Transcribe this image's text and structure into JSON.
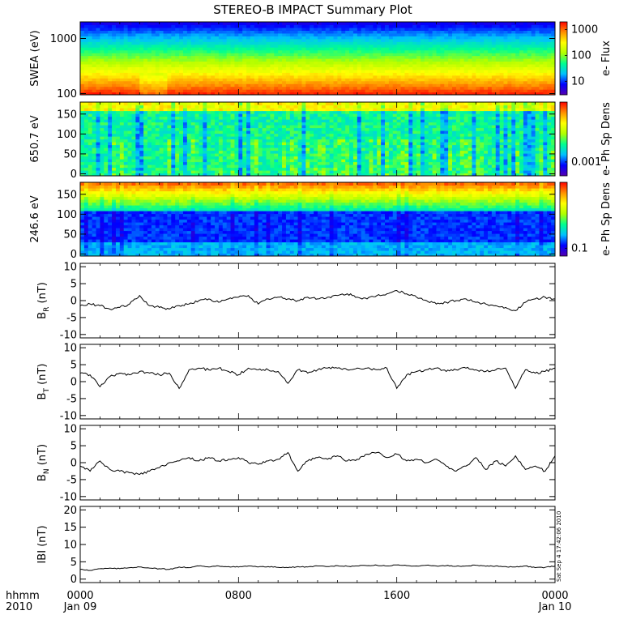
{
  "title": "STEREO-B IMPACT Summary Plot",
  "time_axis": {
    "row_label": "hhmm",
    "year_label": "2010",
    "ticks": [
      {
        "label": "0000",
        "sub": "Jan 09",
        "hour": 0
      },
      {
        "label": "0800",
        "sub": "",
        "hour": 8
      },
      {
        "label": "1600",
        "sub": "",
        "hour": 16
      },
      {
        "label": "0000",
        "sub": "Jan 10",
        "hour": 24
      }
    ],
    "range_hours": [
      0,
      24
    ]
  },
  "timestamp": "Sat Sep  4 17:42:06 2010",
  "colors": {
    "spectrogram_scale": [
      "#5500b0",
      "#0000ff",
      "#00c0ff",
      "#00ff90",
      "#b0ff00",
      "#ffff00",
      "#ff9000",
      "#ff0000"
    ],
    "line": "#000000",
    "axes": "#000000"
  },
  "chart_data": [
    {
      "type": "heatmap",
      "ylabel": "SWEA (eV)",
      "yscale": "log",
      "ylim": [
        95,
        2000
      ],
      "yticks": [
        {
          "value": 100,
          "label": "100"
        },
        {
          "value": 1000,
          "label": "1000"
        }
      ],
      "colorbar": {
        "label": "e- Flux",
        "scale": "log",
        "range": [
          3,
          2000
        ],
        "ticks": [
          {
            "value": 10,
            "label": "10"
          },
          {
            "value": 100,
            "label": "100"
          },
          {
            "value": 1000,
            "label": "1000"
          }
        ]
      }
    },
    {
      "type": "heatmap",
      "ylabel": "650.7 eV",
      "yscale": "linear",
      "ylim": [
        -5,
        180
      ],
      "yticks": [
        {
          "value": 0,
          "label": "0"
        },
        {
          "value": 50,
          "label": "50"
        },
        {
          "value": 100,
          "label": "100"
        },
        {
          "value": 150,
          "label": "150"
        }
      ],
      "colorbar": {
        "label": "e- Ph Sp Dens",
        "scale": "log",
        "range": [
          0.0005,
          0.02
        ],
        "ticks": [
          {
            "value": 0.001,
            "label": "0.001"
          }
        ]
      }
    },
    {
      "type": "heatmap",
      "ylabel": "246.6 eV",
      "yscale": "linear",
      "ylim": [
        -5,
        180
      ],
      "yticks": [
        {
          "value": 0,
          "label": "0"
        },
        {
          "value": 50,
          "label": "50"
        },
        {
          "value": 100,
          "label": "100"
        },
        {
          "value": 150,
          "label": "150"
        }
      ],
      "colorbar": {
        "label": "e- Ph Sp Dens",
        "scale": "log",
        "range": [
          0.07,
          2
        ],
        "ticks": [
          {
            "value": 0.1,
            "label": "0.1"
          }
        ]
      }
    },
    {
      "type": "line",
      "ylabel": "B_R (nT)",
      "ylabel_main": "B",
      "ylabel_sub": "R",
      "ylabel_unit": "(nT)",
      "ylim": [
        -11,
        11
      ],
      "yticks": [
        {
          "value": -10,
          "label": "-10"
        },
        {
          "value": -5,
          "label": "-5"
        },
        {
          "value": 0,
          "label": "0"
        },
        {
          "value": 5,
          "label": "5"
        },
        {
          "value": 10,
          "label": "10"
        }
      ],
      "x": [
        0,
        0.5,
        1,
        1.5,
        2,
        2.5,
        3,
        3.5,
        4,
        4.5,
        5,
        5.5,
        6,
        6.5,
        7,
        7.5,
        8,
        8.5,
        9,
        9.5,
        10,
        10.5,
        11,
        11.5,
        12,
        12.5,
        13,
        13.5,
        14,
        14.5,
        15,
        15.5,
        16,
        16.5,
        17,
        17.5,
        18,
        18.5,
        19,
        19.5,
        20,
        20.5,
        21,
        21.5,
        22,
        22.5,
        23,
        23.5,
        24
      ],
      "y": [
        -1.5,
        -1,
        -1.5,
        -2.5,
        -2,
        -1,
        1.5,
        -1.5,
        -2,
        -2.5,
        -1.5,
        -1,
        0,
        0.5,
        -0.5,
        0.5,
        1,
        1.5,
        -1,
        0.5,
        1,
        0.5,
        0,
        1,
        0.5,
        1,
        1.5,
        2,
        1,
        0.5,
        1.5,
        2,
        3,
        2,
        1,
        0,
        -1,
        -0.5,
        0,
        0.5,
        -0.5,
        -1,
        -1.5,
        -2,
        -3,
        -0.5,
        0.5,
        1,
        0.5
      ]
    },
    {
      "type": "line",
      "ylabel": "B_T (nT)",
      "ylabel_main": "B",
      "ylabel_sub": "T",
      "ylabel_unit": "(nT)",
      "ylim": [
        -11,
        11
      ],
      "yticks": [
        {
          "value": -10,
          "label": "-10"
        },
        {
          "value": -5,
          "label": "-5"
        },
        {
          "value": 0,
          "label": "0"
        },
        {
          "value": 5,
          "label": "5"
        },
        {
          "value": 10,
          "label": "10"
        }
      ],
      "x": [
        0,
        0.5,
        1,
        1.5,
        2,
        2.5,
        3,
        3.5,
        4,
        4.5,
        5,
        5.5,
        6,
        6.5,
        7,
        7.5,
        8,
        8.5,
        9,
        9.5,
        10,
        10.5,
        11,
        11.5,
        12,
        12.5,
        13,
        13.5,
        14,
        14.5,
        15,
        15.5,
        16,
        16.5,
        17,
        17.5,
        18,
        18.5,
        19,
        19.5,
        20,
        20.5,
        21,
        21.5,
        22,
        22.5,
        23,
        23.5,
        24
      ],
      "y": [
        2.5,
        2,
        -1.5,
        1.5,
        2.5,
        2,
        3,
        2.5,
        2,
        2.5,
        -2,
        3.5,
        4,
        3.5,
        4,
        3,
        2,
        4,
        3.5,
        3.5,
        3,
        -0.5,
        3.5,
        2.5,
        3.5,
        4,
        4,
        3.5,
        4,
        4,
        3.5,
        4,
        -2,
        2,
        3,
        3.5,
        4,
        3,
        3.5,
        4,
        3.5,
        3,
        3.5,
        4,
        -2,
        3.5,
        2.5,
        3,
        4
      ]
    },
    {
      "type": "line",
      "ylabel": "B_N (nT)",
      "ylabel_main": "B",
      "ylabel_sub": "N",
      "ylabel_unit": "(nT)",
      "ylim": [
        -11,
        11
      ],
      "yticks": [
        {
          "value": -10,
          "label": "-10"
        },
        {
          "value": -5,
          "label": "-5"
        },
        {
          "value": 0,
          "label": "0"
        },
        {
          "value": 5,
          "label": "5"
        },
        {
          "value": 10,
          "label": "10"
        }
      ],
      "x": [
        0,
        0.5,
        1,
        1.5,
        2,
        2.5,
        3,
        3.5,
        4,
        4.5,
        5,
        5.5,
        6,
        6.5,
        7,
        7.5,
        8,
        8.5,
        9,
        9.5,
        10,
        10.5,
        11,
        11.5,
        12,
        12.5,
        13,
        13.5,
        14,
        14.5,
        15,
        15.5,
        16,
        16.5,
        17,
        17.5,
        18,
        18.5,
        19,
        19.5,
        20,
        20.5,
        21,
        21.5,
        22,
        22.5,
        23,
        23.5,
        24
      ],
      "y": [
        -1,
        -2.5,
        0.5,
        -2,
        -2.5,
        -3,
        -3.5,
        -2.5,
        -1.5,
        0,
        0.5,
        1.5,
        0.5,
        1.5,
        0.5,
        1,
        1.5,
        0,
        -0.5,
        0.5,
        1,
        3,
        -2.5,
        0.5,
        1.5,
        1,
        2,
        0.5,
        1,
        2.5,
        3,
        1.5,
        2.5,
        0.5,
        1,
        0,
        1,
        -1,
        -2.5,
        -1,
        1.5,
        -2,
        0.5,
        -1,
        2,
        -2,
        -1,
        -2.5,
        2
      ]
    },
    {
      "type": "line",
      "ylabel": "|B| (nT)",
      "ylabel_main": "IBI",
      "ylabel_sub": "",
      "ylabel_unit": "(nT)",
      "ylim": [
        -1,
        21
      ],
      "yticks": [
        {
          "value": 0,
          "label": "0"
        },
        {
          "value": 5,
          "label": "5"
        },
        {
          "value": 10,
          "label": "10"
        },
        {
          "value": 15,
          "label": "15"
        },
        {
          "value": 20,
          "label": "20"
        }
      ],
      "x": [
        0,
        0.5,
        1,
        1.5,
        2,
        2.5,
        3,
        3.5,
        4,
        4.5,
        5,
        5.5,
        6,
        6.5,
        7,
        7.5,
        8,
        8.5,
        9,
        9.5,
        10,
        10.5,
        11,
        11.5,
        12,
        12.5,
        13,
        13.5,
        14,
        14.5,
        15,
        15.5,
        16,
        16.5,
        17,
        17.5,
        18,
        18.5,
        19,
        19.5,
        20,
        20.5,
        21,
        21.5,
        22,
        22.5,
        23,
        23.5,
        24
      ],
      "y": [
        2.8,
        2.5,
        3,
        3.2,
        3,
        3.3,
        3.5,
        3.2,
        3,
        2.8,
        3.5,
        3.3,
        3.8,
        3.5,
        3.8,
        3.6,
        3.5,
        3.8,
        3.5,
        3.6,
        3.4,
        3.3,
        3.6,
        3.5,
        3.8,
        3.6,
        3.9,
        3.7,
        3.8,
        3.9,
        4,
        3.8,
        4.1,
        3.9,
        3.8,
        4,
        3.8,
        3.9,
        3.7,
        3.8,
        4,
        3.7,
        3.8,
        3.6,
        3.5,
        3.8,
        3.3,
        3.4,
        3.8
      ]
    }
  ]
}
